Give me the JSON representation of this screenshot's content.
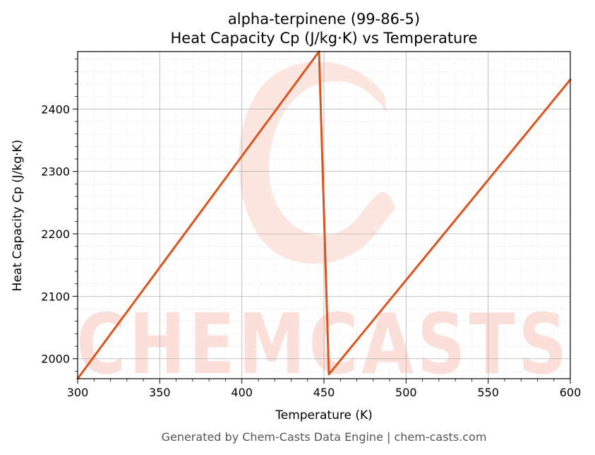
{
  "chart_data": {
    "type": "line",
    "title": "alpha-terpinene (99-86-5)",
    "subtitle": "Heat Capacity Cp (J/kg·K) vs Temperature",
    "xlabel": "Temperature (K)",
    "ylabel": "Heat Capacity Cp (J/kg·K)",
    "xlim": [
      300,
      600
    ],
    "ylim": [
      1968,
      2492
    ],
    "x_ticks": [
      300,
      350,
      400,
      450,
      500,
      550,
      600
    ],
    "y_ticks": [
      2000,
      2100,
      2200,
      2300,
      2400
    ],
    "grid": true,
    "series": [
      {
        "color": "#d9541e",
        "x": [
          300,
          447,
          453,
          600
        ],
        "y": [
          1968,
          2492,
          1975,
          2447
        ]
      }
    ]
  },
  "watermark": {
    "text": "CHEMCASTS",
    "color": "#fbd5cc"
  },
  "footer": "Generated by Chem-Casts Data Engine | chem-casts.com"
}
